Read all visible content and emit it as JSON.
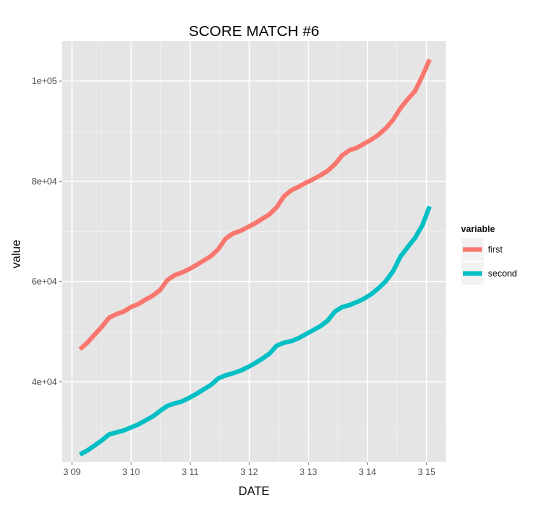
{
  "chart_data": {
    "type": "line",
    "title": "SCORE MATCH #6",
    "xlabel": "DATE",
    "ylabel": "value",
    "x_ticks": [
      "3 09",
      "3 10",
      "3 11",
      "3 12",
      "3 13",
      "3 14",
      "3 15"
    ],
    "y_ticks": [
      {
        "value": 40000,
        "label": "4e+04"
      },
      {
        "value": 60000,
        "label": "6e+04"
      },
      {
        "value": 80000,
        "label": "8e+04"
      },
      {
        "value": 100000,
        "label": "1e+05"
      }
    ],
    "xlim": [
      "3 09",
      "3 15"
    ],
    "ylim": [
      24000,
      108000
    ],
    "grid": true,
    "legend": {
      "title": "variable",
      "position": "right"
    },
    "series": [
      {
        "name": "first",
        "color": "#F8766D",
        "points": [
          [
            "3 09",
            46500
          ],
          [
            "3 09",
            47800
          ],
          [
            "3 09",
            49400
          ],
          [
            "3 09",
            51000
          ],
          [
            "3 09",
            52800
          ],
          [
            "3 09",
            53500
          ],
          [
            "3 09",
            54000
          ],
          [
            "3 10",
            54900
          ],
          [
            "3 10",
            55500
          ],
          [
            "3 10",
            56400
          ],
          [
            "3 10",
            57200
          ],
          [
            "3 10",
            58300
          ],
          [
            "3 10",
            60300
          ],
          [
            "3 10",
            61300
          ],
          [
            "3 10",
            61800
          ],
          [
            "3 11",
            62500
          ],
          [
            "3 11",
            63300
          ],
          [
            "3 11",
            64200
          ],
          [
            "3 11",
            65100
          ],
          [
            "3 11",
            66500
          ],
          [
            "3 11",
            68600
          ],
          [
            "3 11",
            69600
          ],
          [
            "3 11",
            70100
          ],
          [
            "3 12",
            70800
          ],
          [
            "3 12",
            71600
          ],
          [
            "3 12",
            72500
          ],
          [
            "3 12",
            73400
          ],
          [
            "3 12",
            74800
          ],
          [
            "3 12",
            77000
          ],
          [
            "3 12",
            78200
          ],
          [
            "3 12",
            78900
          ],
          [
            "3 13",
            79700
          ],
          [
            "3 13",
            80400
          ],
          [
            "3 13",
            81200
          ],
          [
            "3 13",
            82100
          ],
          [
            "3 13",
            83400
          ],
          [
            "3 13",
            85200
          ],
          [
            "3 13",
            86200
          ],
          [
            "3 13",
            86700
          ],
          [
            "3 14",
            87500
          ],
          [
            "3 14",
            88300
          ],
          [
            "3 14",
            89300
          ],
          [
            "3 14",
            90600
          ],
          [
            "3 14",
            92300
          ],
          [
            "3 14",
            94600
          ],
          [
            "3 14",
            96400
          ],
          [
            "3 14",
            98000
          ],
          [
            "3 15",
            101000
          ],
          [
            "3 15",
            104300
          ]
        ]
      },
      {
        "name": "second",
        "color": "#00BFC4",
        "points": [
          [
            "3 09",
            25500
          ],
          [
            "3 09",
            26300
          ],
          [
            "3 09",
            27300
          ],
          [
            "3 09",
            28300
          ],
          [
            "3 09",
            29500
          ],
          [
            "3 09",
            29900
          ],
          [
            "3 09",
            30300
          ],
          [
            "3 10",
            30900
          ],
          [
            "3 10",
            31500
          ],
          [
            "3 10",
            32300
          ],
          [
            "3 10",
            33100
          ],
          [
            "3 10",
            34200
          ],
          [
            "3 10",
            35200
          ],
          [
            "3 10",
            35700
          ],
          [
            "3 10",
            36100
          ],
          [
            "3 11",
            36800
          ],
          [
            "3 11",
            37600
          ],
          [
            "3 11",
            38500
          ],
          [
            "3 11",
            39400
          ],
          [
            "3 11",
            40700
          ],
          [
            "3 11",
            41300
          ],
          [
            "3 11",
            41700
          ],
          [
            "3 11",
            42200
          ],
          [
            "3 12",
            42900
          ],
          [
            "3 12",
            43700
          ],
          [
            "3 12",
            44600
          ],
          [
            "3 12",
            45600
          ],
          [
            "3 12",
            47200
          ],
          [
            "3 12",
            47800
          ],
          [
            "3 12",
            48100
          ],
          [
            "3 12",
            48700
          ],
          [
            "3 13",
            49500
          ],
          [
            "3 13",
            50300
          ],
          [
            "3 13",
            51100
          ],
          [
            "3 13",
            52200
          ],
          [
            "3 13",
            54000
          ],
          [
            "3 13",
            54900
          ],
          [
            "3 13",
            55300
          ],
          [
            "3 13",
            55900
          ],
          [
            "3 14",
            56600
          ],
          [
            "3 14",
            57500
          ],
          [
            "3 14",
            58700
          ],
          [
            "3 14",
            60100
          ],
          [
            "3 14",
            62100
          ],
          [
            "3 14",
            65000
          ],
          [
            "3 14",
            66900
          ],
          [
            "3 14",
            68700
          ],
          [
            "3 15",
            71200
          ],
          [
            "3 15",
            75000
          ]
        ]
      }
    ]
  }
}
